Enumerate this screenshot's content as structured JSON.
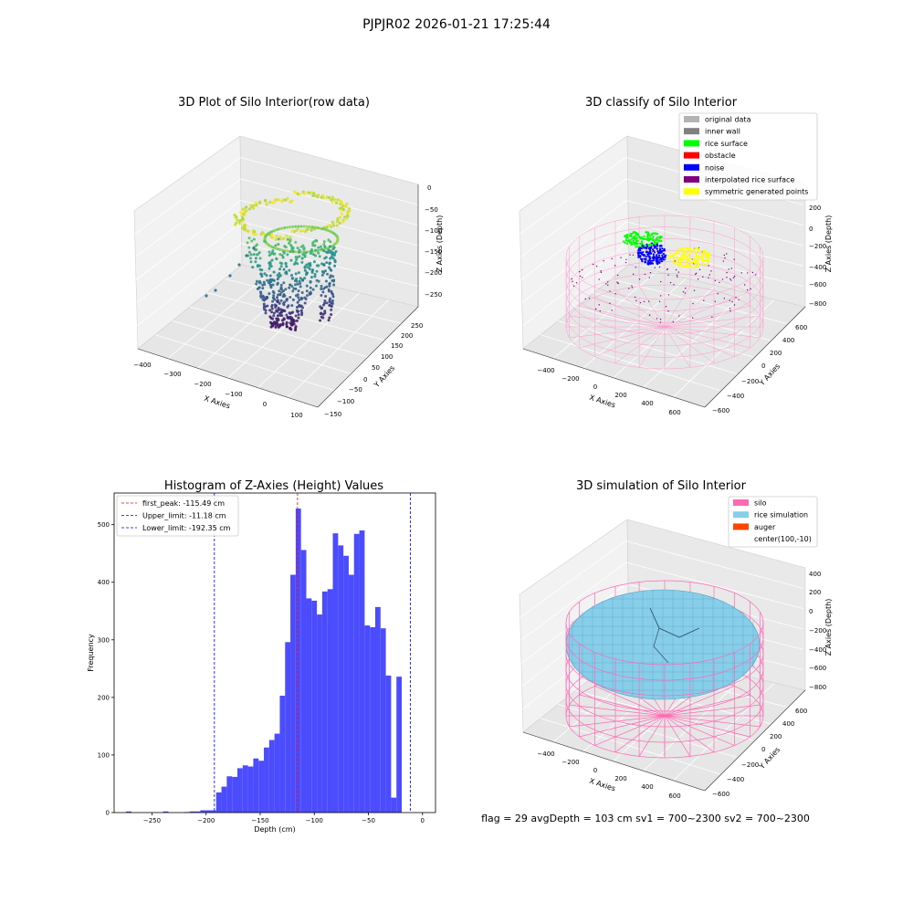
{
  "suptitle": "PJPJR02 2026-01-21 17:25:44",
  "footer_text": "flag = 29  avgDepth = 103 cm  sv1 = 700~2300  sv2 = 700~2300",
  "colors": {
    "hist_bar": "#4c4cff",
    "first_peak": "#ff0000",
    "limit_line": "#0000ff",
    "pane_light": "#f2f2f2",
    "pane_mid": "#ebebeb",
    "pane_dark": "#e6e6e6"
  },
  "chart_data": [
    {
      "id": "raw",
      "type": "scatter",
      "title": "3D Plot of Silo Interior(row data)",
      "xlabel": "X Axies",
      "ylabel": "Y Axies",
      "zlabel": "Z Axies (Depth)",
      "x_ticks": [
        "−400",
        "−300",
        "−200",
        "−100",
        "0",
        "100"
      ],
      "y_ticks": [
        "−150",
        "−100",
        "−50",
        "0",
        "50",
        "100",
        "150",
        "200",
        "250"
      ],
      "z_ticks": [
        "0",
        "−50",
        "−100",
        "−150",
        "−200",
        "−250"
      ],
      "xlim": [
        -420,
        120
      ],
      "ylim": [
        -160,
        260
      ],
      "zlim": [
        -275,
        5
      ],
      "colormap": "viridis"
    },
    {
      "id": "classify",
      "type": "scatter",
      "title": "3D classify of Silo Interior",
      "xlabel": "X Axies",
      "ylabel": "Y Axies",
      "zlabel": "Z Axies (Depth)",
      "x_ticks": [
        "−400",
        "−200",
        "0",
        "200",
        "400",
        "600"
      ],
      "y_ticks": [
        "−600",
        "−400",
        "−200",
        "0",
        "200",
        "400",
        "600"
      ],
      "z_ticks": [
        "200",
        "0",
        "−200",
        "−400",
        "−600",
        "−800"
      ],
      "legend_position": "upper right",
      "legend": [
        {
          "label": "original data",
          "color": "#b3b3b3"
        },
        {
          "label": "inner wall",
          "color": "#808080"
        },
        {
          "label": "rice surface",
          "color": "#00ff00"
        },
        {
          "label": "obstacle",
          "color": "#ff0000"
        },
        {
          "label": "noise",
          "color": "#0000ff"
        },
        {
          "label": "interpolated rice surface",
          "color": "#800080"
        },
        {
          "label": "symmetric generated points",
          "color": "#ffff00"
        }
      ]
    },
    {
      "id": "histogram",
      "type": "bar",
      "title": "Histogram of Z-Axies (Height) Values",
      "xlabel": "Depth (cm)",
      "ylabel": "Frequency",
      "xlim": [
        -285,
        12
      ],
      "ylim": [
        0,
        555
      ],
      "x_ticks": [
        -250,
        -200,
        -150,
        -100,
        -50,
        0
      ],
      "x_tick_labels": [
        "−250",
        "−200",
        "−150",
        "−100",
        "−50",
        "0"
      ],
      "y_ticks": [
        0,
        100,
        200,
        300,
        400,
        500
      ],
      "y_tick_labels": [
        "0",
        "100",
        "200",
        "300",
        "400",
        "500"
      ],
      "bin_start": -274,
      "bin_width": 4.9,
      "counts": [
        2,
        0,
        0,
        0,
        0,
        0,
        0,
        2,
        0,
        0,
        0,
        1,
        2,
        2,
        4,
        4,
        4,
        35,
        45,
        63,
        62,
        77,
        82,
        80,
        94,
        90,
        113,
        126,
        137,
        203,
        296,
        413,
        528,
        456,
        372,
        368,
        344,
        384,
        388,
        485,
        464,
        446,
        413,
        484,
        490,
        325,
        322,
        357,
        320,
        238,
        26,
        236
      ],
      "legend_position": "upper left",
      "vlines": [
        {
          "label": "first_peak: -115.49 cm",
          "x": -115.49,
          "color": "#ff0000"
        },
        {
          "label": "Upper_limit: -11.18 cm",
          "x": -11.18,
          "color": "#0000ff"
        },
        {
          "label": "Lower_limit: -192.35 cm",
          "x": -192.35,
          "color": "#0000ff"
        }
      ]
    },
    {
      "id": "simulation",
      "type": "other",
      "title": "3D simulation of Silo Interior",
      "xlabel": "X Axies",
      "ylabel": "Y Axies",
      "zlabel": "Z Axies (Depth)",
      "x_ticks": [
        "−400",
        "−200",
        "0",
        "200",
        "400",
        "600"
      ],
      "y_ticks": [
        "−600",
        "−400",
        "−200",
        "0",
        "200",
        "400",
        "600"
      ],
      "z_ticks": [
        "400",
        "200",
        "0",
        "−200",
        "−400",
        "−600",
        "−800"
      ],
      "legend_position": "upper right",
      "legend": [
        {
          "label": "silo",
          "color": "#ff69b4"
        },
        {
          "label": "rice simulation",
          "color": "#87ceeb"
        },
        {
          "label": "auger",
          "color": "#ff4500"
        },
        {
          "label": "center(100,-10)",
          "color": ""
        }
      ]
    }
  ]
}
